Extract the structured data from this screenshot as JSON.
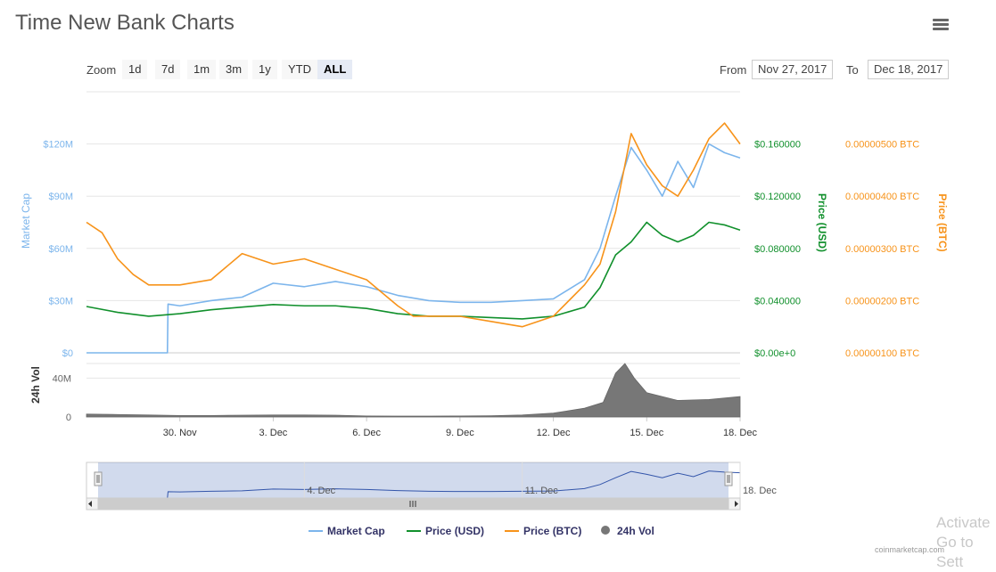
{
  "title": "Time New Bank Charts",
  "zoom": {
    "label": "Zoom",
    "buttons": [
      "1d",
      "7d",
      "1m",
      "3m",
      "1y",
      "YTD",
      "ALL"
    ],
    "active": "ALL"
  },
  "range": {
    "from_label": "From",
    "from_value": "Nov 27, 2017",
    "to_label": "To",
    "to_value": "Dec 18, 2017"
  },
  "watermark": {
    "line1": "Activate",
    "line2": "Go to Sett"
  },
  "credit": "coinmarketcap.com",
  "chart_data": {
    "type": "line",
    "x_start": "Nov 27, 2017",
    "x_end": "Dec 18, 2017",
    "x_ticks": [
      "30. Nov",
      "3. Dec",
      "6. Dec",
      "9. Dec",
      "12. Dec",
      "15. Dec",
      "18. Dec"
    ],
    "navigator_ticks": [
      "4. Dec",
      "11. Dec",
      "18. Dec"
    ],
    "axes": {
      "market_cap": {
        "label": "Market Cap",
        "ticks": [
          "$0",
          "$30M",
          "$60M",
          "$90M",
          "$120M"
        ],
        "range": [
          0,
          150000000
        ],
        "color": "#7cb5ec"
      },
      "price_usd": {
        "label": "Price (USD)",
        "ticks": [
          "$0.00e+0",
          "$0.040000",
          "$0.080000",
          "$0.120000",
          "$0.160000"
        ],
        "range": [
          0,
          0.2
        ],
        "color": "#11902c"
      },
      "price_btc": {
        "label": "Price (BTC)",
        "ticks": [
          "0.00000100 BTC",
          "0.00000200 BTC",
          "0.00000300 BTC",
          "0.00000400 BTC",
          "0.00000500 BTC"
        ],
        "range": [
          1e-06,
          6e-06
        ],
        "color": "#f7931a"
      },
      "volume": {
        "label": "24h Vol",
        "ticks": [
          "0",
          "40M"
        ],
        "range": [
          0,
          55000000
        ],
        "color": "#777777"
      }
    },
    "series": [
      {
        "name": "Market Cap",
        "color": "#7cb5ec",
        "x": [
          0,
          2.6,
          2.62,
          3,
          4,
          5,
          6,
          7,
          8,
          9,
          10,
          11,
          12,
          13,
          14,
          15,
          16,
          16.5,
          17,
          17.5,
          18,
          18.5,
          19,
          19.5,
          20,
          20.5,
          21
        ],
        "y": [
          0,
          0,
          28000000,
          27000000,
          30000000,
          32000000,
          40000000,
          38000000,
          41000000,
          38000000,
          33000000,
          30000000,
          29000000,
          29000000,
          30000000,
          31000000,
          42000000,
          60000000,
          90000000,
          118000000,
          105000000,
          90000000,
          110000000,
          95000000,
          120000000,
          115000000,
          112000000
        ]
      },
      {
        "name": "Price (USD)",
        "color": "#11902c",
        "x": [
          0,
          1,
          2,
          3,
          4,
          5,
          6,
          7,
          8,
          9,
          10,
          11,
          12,
          13,
          14,
          15,
          16,
          16.5,
          17,
          17.5,
          18,
          18.5,
          19,
          19.5,
          20,
          20.5,
          21
        ],
        "y": [
          0.0355,
          0.031,
          0.028,
          0.03,
          0.033,
          0.035,
          0.037,
          0.036,
          0.036,
          0.034,
          0.03,
          0.028,
          0.028,
          0.027,
          0.026,
          0.028,
          0.035,
          0.05,
          0.075,
          0.085,
          0.1,
          0.09,
          0.085,
          0.09,
          0.1,
          0.098,
          0.094
        ]
      },
      {
        "name": "Price (BTC)",
        "color": "#f7931a",
        "x": [
          0,
          0.5,
          1,
          1.5,
          2,
          3,
          4,
          5,
          6,
          7,
          8,
          9,
          10,
          10.5,
          11,
          12,
          13,
          14,
          15,
          16,
          16.5,
          17,
          17.5,
          18,
          18.5,
          19,
          19.5,
          20,
          20.5,
          21
        ],
        "y": [
          3.5e-06,
          3.3e-06,
          2.8e-06,
          2.5e-06,
          2.3e-06,
          2.3e-06,
          2.4e-06,
          2.9e-06,
          2.7e-06,
          2.8e-06,
          2.6e-06,
          2.4e-06,
          1.9e-06,
          1.7e-06,
          1.7e-06,
          1.7e-06,
          1.6e-06,
          1.5e-06,
          1.7e-06,
          2.3e-06,
          2.7e-06,
          3.7e-06,
          5.2e-06,
          4.6e-06,
          4.2e-06,
          4e-06,
          4.5e-06,
          5.1e-06,
          5.4e-06,
          5e-06
        ]
      },
      {
        "name": "24h Vol",
        "color": "#777777",
        "type": "area",
        "x": [
          0,
          1,
          2,
          3,
          4,
          5,
          6,
          7,
          8,
          9,
          10,
          11,
          12,
          13,
          14,
          15,
          16,
          16.6,
          17,
          17.3,
          17.6,
          18,
          19,
          20,
          21
        ],
        "y": [
          3000000,
          2500000,
          2000000,
          1500000,
          1500000,
          1800000,
          2000000,
          2000000,
          1800000,
          1000000,
          900000,
          900000,
          1000000,
          1200000,
          2000000,
          4000000,
          9000000,
          15000000,
          45000000,
          55000000,
          40000000,
          25000000,
          17000000,
          18000000,
          21000000
        ]
      }
    ],
    "legend": {
      "placement": "bottom",
      "items": [
        "Market Cap",
        "Price (USD)",
        "Price (BTC)",
        "24h Vol"
      ]
    },
    "grid": true
  }
}
